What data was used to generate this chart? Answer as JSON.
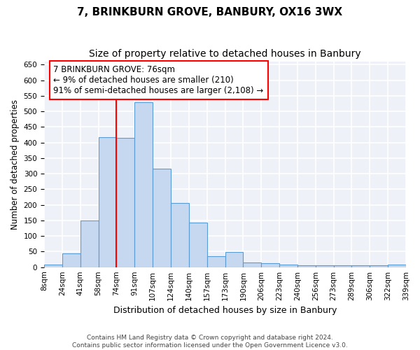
{
  "title1": "7, BRINKBURN GROVE, BANBURY, OX16 3WX",
  "title2": "Size of property relative to detached houses in Banbury",
  "xlabel": "Distribution of detached houses by size in Banbury",
  "ylabel": "Number of detached properties",
  "categories": [
    "8sqm",
    "24sqm",
    "41sqm",
    "58sqm",
    "74sqm",
    "91sqm",
    "107sqm",
    "124sqm",
    "140sqm",
    "157sqm",
    "173sqm",
    "190sqm",
    "206sqm",
    "223sqm",
    "240sqm",
    "256sqm",
    "273sqm",
    "289sqm",
    "306sqm",
    "322sqm",
    "339sqm"
  ],
  "values": [
    8,
    45,
    150,
    418,
    415,
    530,
    315,
    205,
    143,
    35,
    48,
    15,
    13,
    8,
    5,
    5,
    5,
    5,
    5,
    8
  ],
  "bar_color": "#c5d8f0",
  "bar_edge_color": "#5b9bd5",
  "vline_x_index": 4,
  "vline_color": "red",
  "annotation_line1": "7 BRINKBURN GROVE: 76sqm",
  "annotation_line2": "← 9% of detached houses are smaller (210)",
  "annotation_line3": "91% of semi-detached houses are larger (2,108) →",
  "annotation_box_color": "white",
  "annotation_box_edge_color": "red",
  "ylim": [
    0,
    660
  ],
  "yticks": [
    0,
    50,
    100,
    150,
    200,
    250,
    300,
    350,
    400,
    450,
    500,
    550,
    600,
    650
  ],
  "footer1": "Contains HM Land Registry data © Crown copyright and database right 2024.",
  "footer2": "Contains public sector information licensed under the Open Government Licence v3.0.",
  "bg_color": "#eef2f8",
  "grid_color": "white",
  "title_fontsize": 11,
  "subtitle_fontsize": 10,
  "ylabel_fontsize": 8.5,
  "xlabel_fontsize": 9,
  "tick_fontsize": 7.5,
  "annotation_fontsize": 8.5,
  "footer_fontsize": 6.5
}
